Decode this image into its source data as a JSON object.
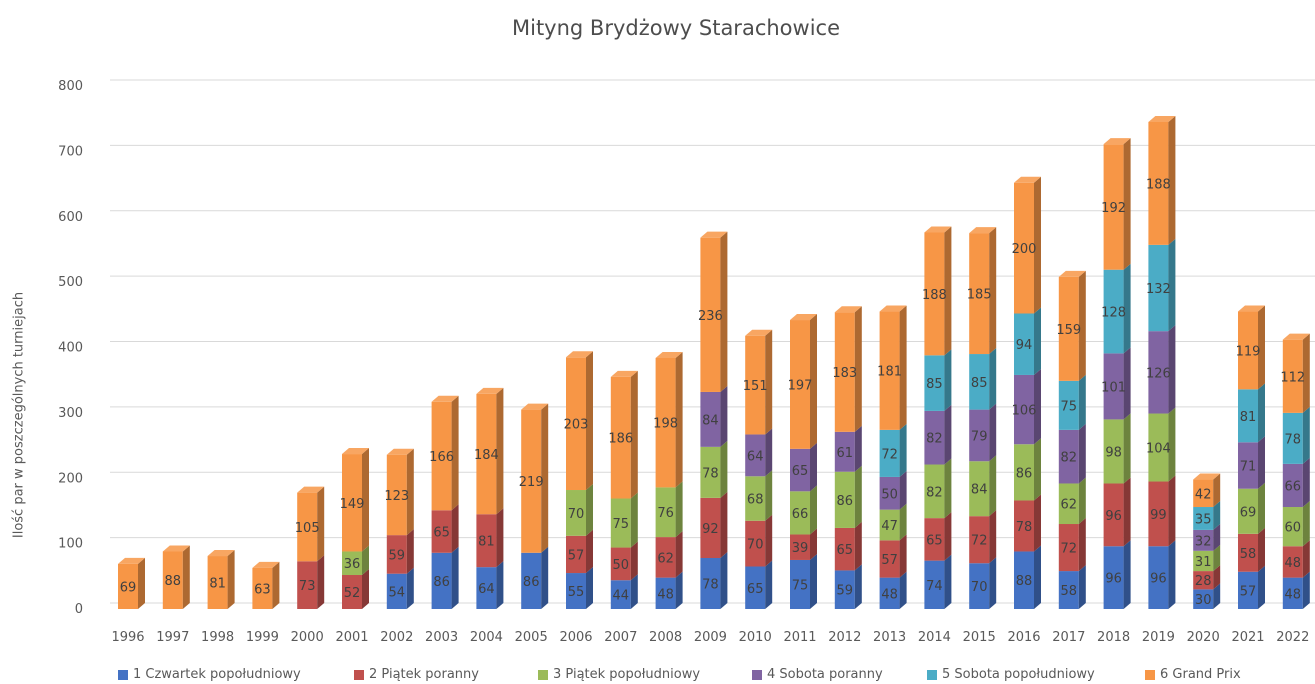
{
  "chart_data": {
    "type": "bar",
    "stacked": true,
    "style": "3d-column",
    "title": "Mityng Brydżowy Starachowice",
    "xlabel": "",
    "ylabel": "Ilość par w poszczególnych turniejach",
    "ylim": [
      0,
      800
    ],
    "yticks": [
      0,
      100,
      200,
      300,
      400,
      500,
      600,
      700,
      800
    ],
    "grid": true,
    "legend_position": "bottom",
    "categories": [
      "1996",
      "1997",
      "1998",
      "1999",
      "2000",
      "2001",
      "2002",
      "2003",
      "2004",
      "2005",
      "2006",
      "2007",
      "2008",
      "2009",
      "2010",
      "2011",
      "2012",
      "2013",
      "2014",
      "2015",
      "2016",
      "2017",
      "2018",
      "2019",
      "2020",
      "2021",
      "2022"
    ],
    "series": [
      {
        "name": "1 Czwartek popołudniowy",
        "color": "#4472c4",
        "values": [
          null,
          null,
          null,
          null,
          null,
          null,
          54,
          86,
          64,
          86,
          55,
          44,
          48,
          78,
          65,
          75,
          59,
          48,
          74,
          70,
          88,
          58,
          96,
          96,
          30,
          57,
          48
        ]
      },
      {
        "name": "2 Piątek poranny",
        "color": "#c0504d",
        "values": [
          null,
          null,
          null,
          null,
          73,
          52,
          59,
          65,
          81,
          null,
          57,
          50,
          62,
          92,
          70,
          39,
          65,
          57,
          65,
          72,
          78,
          72,
          96,
          99,
          28,
          58,
          48
        ]
      },
      {
        "name": "3 Piątek popołudniowy",
        "color": "#9bbb59",
        "values": [
          null,
          null,
          null,
          null,
          null,
          36,
          null,
          null,
          null,
          null,
          70,
          75,
          76,
          78,
          68,
          66,
          86,
          47,
          82,
          84,
          86,
          62,
          98,
          104,
          31,
          69,
          60
        ]
      },
      {
        "name": "4 Sobota poranny",
        "color": "#8064a2",
        "values": [
          null,
          null,
          null,
          null,
          null,
          null,
          null,
          null,
          null,
          null,
          null,
          null,
          null,
          84,
          64,
          65,
          61,
          50,
          82,
          79,
          106,
          82,
          101,
          126,
          32,
          71,
          66
        ]
      },
      {
        "name": "5 Sobota popołudniowy",
        "color": "#4bacc6",
        "values": [
          null,
          null,
          null,
          null,
          null,
          null,
          null,
          null,
          null,
          null,
          null,
          null,
          null,
          null,
          null,
          null,
          null,
          72,
          85,
          85,
          94,
          75,
          128,
          132,
          35,
          81,
          78
        ]
      },
      {
        "name": "6 Grand Prix",
        "color": "#f79646",
        "values": [
          69,
          88,
          81,
          63,
          105,
          149,
          123,
          166,
          184,
          219,
          203,
          186,
          198,
          236,
          151,
          197,
          183,
          181,
          188,
          185,
          200,
          159,
          192,
          188,
          42,
          119,
          112
        ]
      }
    ]
  }
}
